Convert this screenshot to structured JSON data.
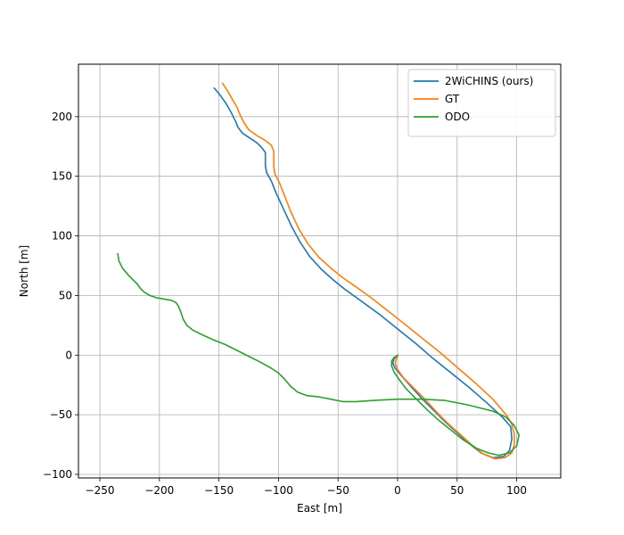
{
  "chart_data": {
    "type": "line",
    "title": "",
    "xlabel": "East [m]",
    "ylabel": "North [m]",
    "xlim": [
      -268,
      137
    ],
    "ylim": [
      -103,
      244
    ],
    "xticks": [
      -250,
      -200,
      -150,
      -100,
      -50,
      0,
      50,
      100
    ],
    "yticks": [
      -100,
      -50,
      0,
      50,
      100,
      150,
      200
    ],
    "xtick_labels": [
      "−250",
      "−200",
      "−150",
      "−100",
      "−50",
      "0",
      "50",
      "100"
    ],
    "ytick_labels": [
      "−100",
      "−50",
      "0",
      "50",
      "100",
      "150",
      "200"
    ],
    "grid": true,
    "legend_position": "top-right",
    "series": [
      {
        "name": "2WiCHINS (ours)",
        "color": "#1f77b4",
        "points": [
          [
            -154,
            224
          ],
          [
            -149,
            218
          ],
          [
            -144,
            211
          ],
          [
            -140,
            204
          ],
          [
            -136,
            196
          ],
          [
            -134,
            191
          ],
          [
            -130,
            186
          ],
          [
            -124,
            182
          ],
          [
            -118,
            178
          ],
          [
            -114,
            174
          ],
          [
            -111,
            170
          ],
          [
            -111,
            165
          ],
          [
            -111,
            159
          ],
          [
            -110,
            153
          ],
          [
            -106,
            146
          ],
          [
            -102,
            136
          ],
          [
            -96,
            123
          ],
          [
            -89,
            108
          ],
          [
            -82,
            95
          ],
          [
            -74,
            83
          ],
          [
            -64,
            72
          ],
          [
            -54,
            63
          ],
          [
            -44,
            55
          ],
          [
            -30,
            45
          ],
          [
            -15,
            34
          ],
          [
            0,
            22
          ],
          [
            15,
            10
          ],
          [
            30,
            -3
          ],
          [
            45,
            -15
          ],
          [
            60,
            -27
          ],
          [
            75,
            -40
          ],
          [
            88,
            -52
          ],
          [
            95,
            -60
          ],
          [
            96,
            -70
          ],
          [
            94,
            -80
          ],
          [
            89,
            -85
          ],
          [
            80,
            -86
          ],
          [
            70,
            -82
          ],
          [
            60,
            -74
          ],
          [
            50,
            -65
          ],
          [
            40,
            -56
          ],
          [
            30,
            -46
          ],
          [
            20,
            -36
          ],
          [
            10,
            -25
          ],
          [
            3,
            -17
          ],
          [
            -2,
            -11
          ],
          [
            -4,
            -7
          ],
          [
            -3,
            -3
          ],
          [
            -1,
            -1
          ],
          [
            0,
            0
          ]
        ]
      },
      {
        "name": "GT",
        "color": "#ff7f0e",
        "points": [
          [
            -147,
            228
          ],
          [
            -143,
            222
          ],
          [
            -139,
            215
          ],
          [
            -135,
            208
          ],
          [
            -132,
            201
          ],
          [
            -129,
            195
          ],
          [
            -125,
            189
          ],
          [
            -118,
            184
          ],
          [
            -111,
            180
          ],
          [
            -106,
            176
          ],
          [
            -104,
            171
          ],
          [
            -104,
            164
          ],
          [
            -104,
            158
          ],
          [
            -103,
            152
          ],
          [
            -99,
            144
          ],
          [
            -95,
            134
          ],
          [
            -90,
            121
          ],
          [
            -83,
            106
          ],
          [
            -75,
            93
          ],
          [
            -66,
            82
          ],
          [
            -56,
            73
          ],
          [
            -46,
            65
          ],
          [
            -36,
            58
          ],
          [
            -22,
            48
          ],
          [
            -8,
            37
          ],
          [
            6,
            26
          ],
          [
            21,
            14
          ],
          [
            36,
            2
          ],
          [
            51,
            -11
          ],
          [
            66,
            -24
          ],
          [
            80,
            -37
          ],
          [
            92,
            -51
          ],
          [
            96,
            -58
          ],
          [
            98,
            -66
          ],
          [
            98,
            -75
          ],
          [
            96,
            -82
          ],
          [
            90,
            -86
          ],
          [
            82,
            -87
          ],
          [
            72,
            -83
          ],
          [
            62,
            -75
          ],
          [
            52,
            -66
          ],
          [
            42,
            -57
          ],
          [
            33,
            -48
          ],
          [
            23,
            -37
          ],
          [
            13,
            -27
          ],
          [
            5,
            -19
          ],
          [
            0,
            -12
          ],
          [
            -2,
            -7
          ],
          [
            -1,
            -3
          ],
          [
            0,
            -1
          ],
          [
            0,
            0
          ]
        ]
      },
      {
        "name": "ODO",
        "color": "#2ca02c",
        "points": [
          [
            -235,
            85
          ],
          [
            -234,
            79
          ],
          [
            -231,
            73
          ],
          [
            -226,
            67
          ],
          [
            -219,
            60
          ],
          [
            -216,
            56
          ],
          [
            -213,
            53
          ],
          [
            -208,
            50
          ],
          [
            -202,
            48
          ],
          [
            -196,
            47
          ],
          [
            -190,
            46
          ],
          [
            -186,
            44
          ],
          [
            -184,
            41
          ],
          [
            -182,
            36
          ],
          [
            -180,
            30
          ],
          [
            -177,
            25
          ],
          [
            -172,
            21
          ],
          [
            -164,
            17
          ],
          [
            -155,
            13
          ],
          [
            -145,
            9
          ],
          [
            -135,
            4
          ],
          [
            -125,
            -1
          ],
          [
            -115,
            -6
          ],
          [
            -106,
            -11
          ],
          [
            -100,
            -15
          ],
          [
            -95,
            -20
          ],
          [
            -90,
            -26
          ],
          [
            -84,
            -31
          ],
          [
            -76,
            -34
          ],
          [
            -66,
            -35
          ],
          [
            -56,
            -37
          ],
          [
            -46,
            -39
          ],
          [
            -35,
            -39
          ],
          [
            -20,
            -38
          ],
          [
            0,
            -37
          ],
          [
            20,
            -37
          ],
          [
            40,
            -38
          ],
          [
            60,
            -42
          ],
          [
            80,
            -47
          ],
          [
            91,
            -52
          ],
          [
            98,
            -59
          ],
          [
            102,
            -67
          ],
          [
            100,
            -76
          ],
          [
            94,
            -82
          ],
          [
            85,
            -84
          ],
          [
            76,
            -82
          ],
          [
            66,
            -78
          ],
          [
            55,
            -71
          ],
          [
            45,
            -63
          ],
          [
            35,
            -55
          ],
          [
            25,
            -46
          ],
          [
            15,
            -36
          ],
          [
            7,
            -28
          ],
          [
            1,
            -20
          ],
          [
            -3,
            -14
          ],
          [
            -5,
            -9
          ],
          [
            -5,
            -5
          ],
          [
            -3,
            -2
          ],
          [
            -1,
            -1
          ],
          [
            0,
            0
          ]
        ]
      }
    ]
  }
}
